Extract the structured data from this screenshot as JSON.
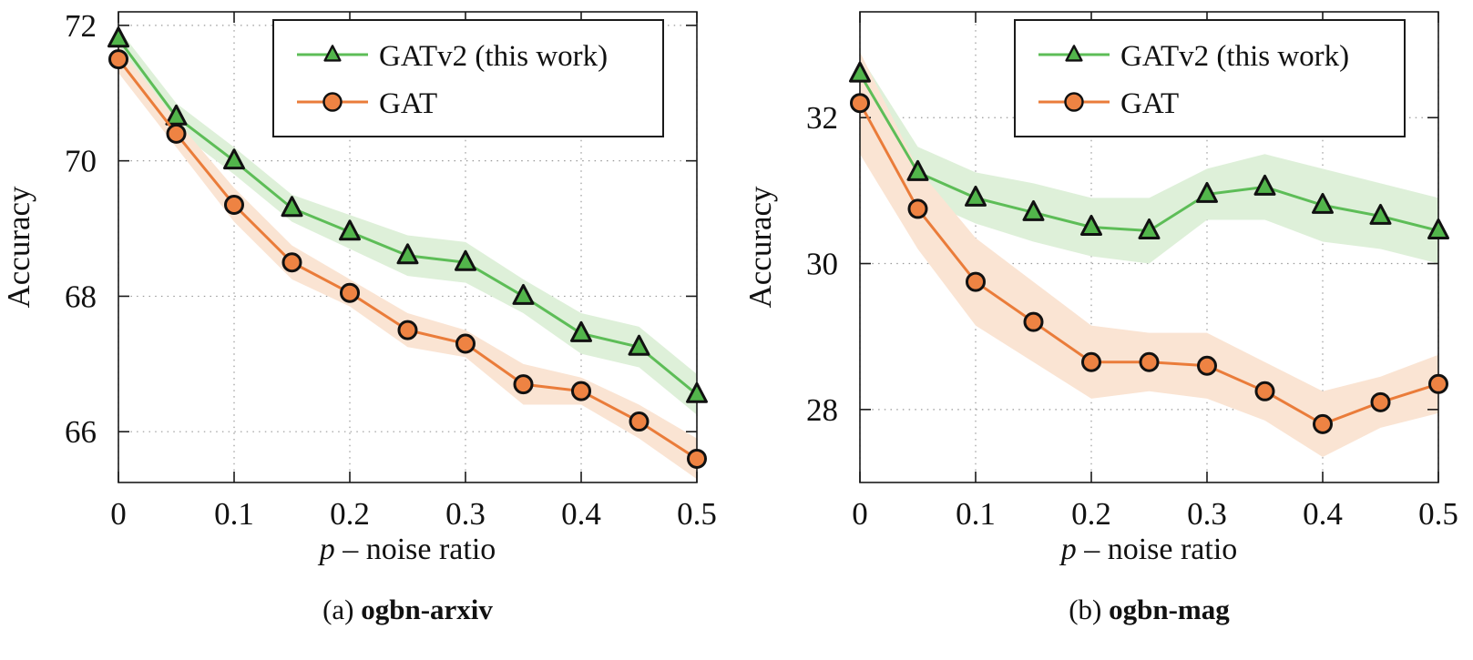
{
  "figure": {
    "panels": [
      {
        "caption_prefix": "(a)",
        "caption_label": "ogbn-arxiv",
        "xlabel_var": "p",
        "xlabel_rest": "– noise ratio",
        "ylabel": "Accuracy"
      },
      {
        "caption_prefix": "(b)",
        "caption_label": "ogbn-mag",
        "xlabel_var": "p",
        "xlabel_rest": "– noise ratio",
        "ylabel": "Accuracy"
      }
    ],
    "legend_entries": [
      "GATv2 (this work)",
      "GAT"
    ]
  },
  "colors": {
    "gatv2_line": "#5dbd57",
    "gatv2_marker": "#52b54b",
    "gatv2_band": "#def0d9",
    "gat_line": "#ea7c3a",
    "gat_marker": "#ee8343",
    "gat_band": "#fae4d3",
    "axis": "#1a1a1a",
    "grid": "#9a9a9a",
    "text": "#111111"
  },
  "chart_data": [
    {
      "type": "line",
      "caption": "(a) ogbn-arxiv",
      "xlabel": "p – noise ratio",
      "ylabel": "Accuracy",
      "grid": "dotted",
      "legend_position": "top-right",
      "xlim": [
        0,
        0.5
      ],
      "ylim": [
        65.25,
        72.2
      ],
      "xticks": [
        0,
        0.1,
        0.2,
        0.3,
        0.4,
        0.5
      ],
      "yticks": [
        66,
        68,
        70,
        72
      ],
      "x": [
        0,
        0.05,
        0.1,
        0.15,
        0.2,
        0.25,
        0.3,
        0.35,
        0.4,
        0.45,
        0.5
      ],
      "series": [
        {
          "id": "gatv2",
          "name": "GATv2 (this work)",
          "marker": "triangle",
          "color": "#5dbd57",
          "marker_fill": "#52b54b",
          "band_color": "#def0d9",
          "values": [
            71.8,
            70.65,
            70.0,
            69.3,
            68.95,
            68.6,
            68.5,
            68.0,
            67.45,
            67.25,
            66.55
          ],
          "band": [
            0.15,
            0.2,
            0.2,
            0.2,
            0.25,
            0.3,
            0.3,
            0.25,
            0.3,
            0.3,
            0.3
          ]
        },
        {
          "id": "gat",
          "name": "GAT",
          "marker": "circle",
          "color": "#ea7c3a",
          "marker_fill": "#ee8343",
          "band_color": "#fae4d3",
          "values": [
            71.5,
            70.4,
            69.35,
            68.5,
            68.05,
            67.5,
            67.3,
            66.7,
            66.6,
            66.15,
            65.6
          ],
          "band": [
            0.2,
            0.2,
            0.25,
            0.25,
            0.2,
            0.25,
            0.2,
            0.3,
            0.2,
            0.25,
            0.3
          ]
        }
      ]
    },
    {
      "type": "line",
      "caption": "(b) ogbn-mag",
      "xlabel": "p – noise ratio",
      "ylabel": "Accuracy",
      "grid": "dotted",
      "legend_position": "top-right",
      "xlim": [
        0,
        0.5
      ],
      "ylim": [
        27.0,
        33.45
      ],
      "xticks": [
        0,
        0.1,
        0.2,
        0.3,
        0.4,
        0.5
      ],
      "yticks": [
        28,
        30,
        32
      ],
      "x": [
        0,
        0.05,
        0.1,
        0.15,
        0.2,
        0.25,
        0.3,
        0.35,
        0.4,
        0.45,
        0.5
      ],
      "series": [
        {
          "id": "gatv2",
          "name": "GATv2 (this work)",
          "marker": "triangle",
          "color": "#5dbd57",
          "marker_fill": "#52b54b",
          "band_color": "#def0d9",
          "values": [
            32.6,
            31.25,
            30.9,
            30.7,
            30.5,
            30.45,
            30.95,
            31.05,
            30.8,
            30.65,
            30.45
          ],
          "band": [
            0.25,
            0.35,
            0.35,
            0.4,
            0.4,
            0.45,
            0.35,
            0.45,
            0.5,
            0.45,
            0.45
          ]
        },
        {
          "id": "gat",
          "name": "GAT",
          "marker": "circle",
          "color": "#ea7c3a",
          "marker_fill": "#ee8343",
          "band_color": "#fae4d3",
          "values": [
            32.2,
            30.75,
            29.75,
            29.2,
            28.65,
            28.65,
            28.6,
            28.25,
            27.8,
            28.1,
            28.35
          ],
          "band": [
            0.7,
            0.55,
            0.6,
            0.55,
            0.5,
            0.4,
            0.45,
            0.4,
            0.45,
            0.35,
            0.4
          ]
        }
      ]
    }
  ]
}
